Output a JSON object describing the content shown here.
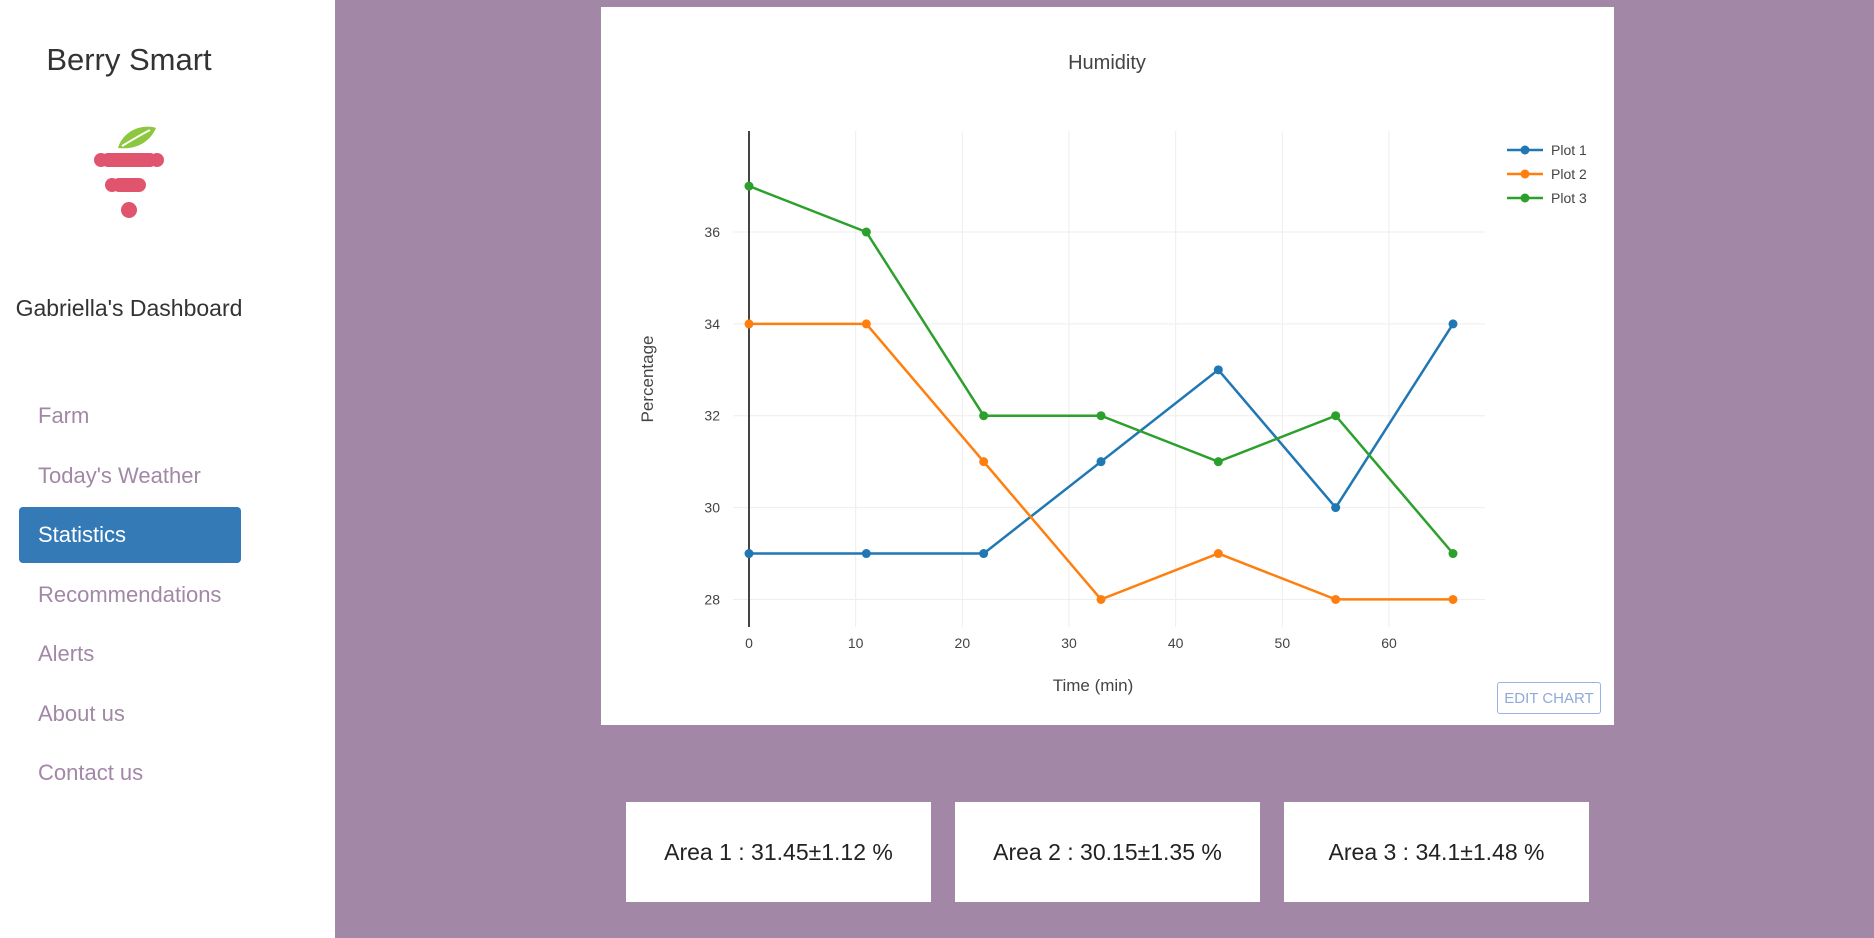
{
  "sidebar": {
    "brand": "Berry Smart",
    "dashboard_title": "Gabriella's Dashboard",
    "items": [
      {
        "label": "Farm",
        "active": false
      },
      {
        "label": "Today's Weather",
        "active": false
      },
      {
        "label": "Statistics",
        "active": true
      },
      {
        "label": "Recommendations",
        "active": false
      },
      {
        "label": "Alerts",
        "active": false
      },
      {
        "label": "About us",
        "active": false
      },
      {
        "label": "Contact us",
        "active": false
      }
    ],
    "logo_icon": "berry-leaf-logo"
  },
  "colors": {
    "background": "#a287a7",
    "active_nav": "#337ab7",
    "nav_text": "#a287a7",
    "leaf": "#8dc63f",
    "berry": "#e0546e"
  },
  "chart": {
    "edit_label": "EDIT CHART"
  },
  "chart_data": {
    "type": "line",
    "title": "Humidity",
    "xlabel": "Time (min)",
    "ylabel": "Percentage",
    "xlim": [
      -1.5,
      69
    ],
    "ylim": [
      27.4,
      38.2
    ],
    "xticks": [
      0,
      10,
      20,
      30,
      40,
      50,
      60
    ],
    "yticks": [
      28,
      30,
      32,
      34,
      36
    ],
    "x": [
      0,
      11,
      22,
      33,
      44,
      55,
      66
    ],
    "legend_position": "top-right",
    "series": [
      {
        "name": "Plot 1",
        "color": "#1f77b4",
        "values": [
          29,
          29,
          29,
          31,
          33,
          30,
          34
        ]
      },
      {
        "name": "Plot 2",
        "color": "#ff7f0e",
        "values": [
          34,
          34,
          31,
          28,
          29,
          28,
          28
        ]
      },
      {
        "name": "Plot 3",
        "color": "#2ca02c",
        "values": [
          37,
          36,
          32,
          32,
          31,
          32,
          29
        ]
      }
    ]
  },
  "stats": [
    {
      "label": "Area 1 : 31.45±1.12 %"
    },
    {
      "label": "Area 2 : 30.15±1.35 %"
    },
    {
      "label": "Area 3 : 34.1±1.48 %"
    }
  ]
}
